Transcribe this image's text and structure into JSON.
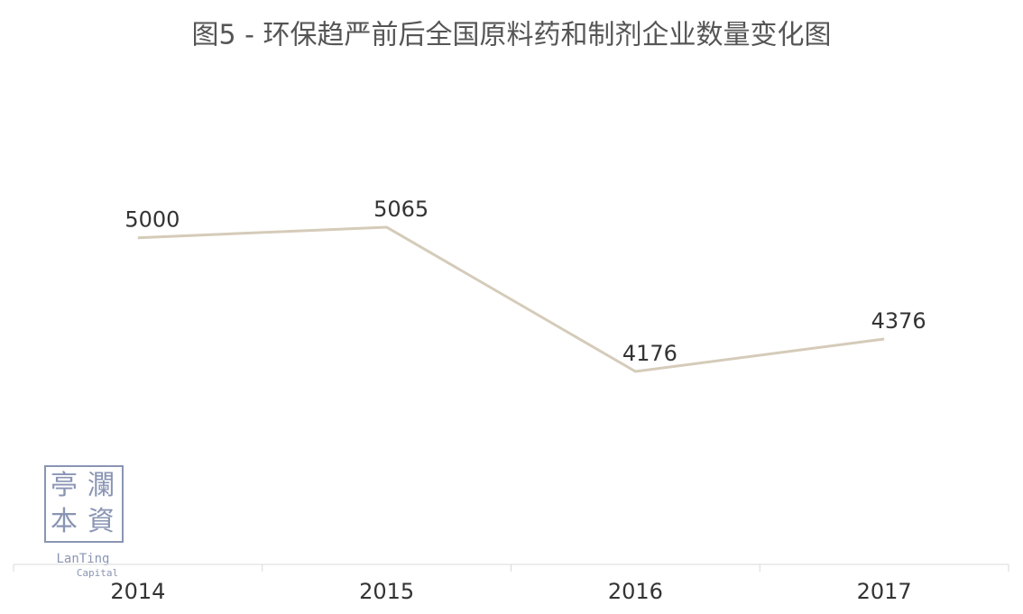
{
  "chart_data": {
    "type": "line",
    "title": "图5 - 环保趋严前后全国原料药和制剂企业数量变化图",
    "categories": [
      "2014",
      "2015",
      "2016",
      "2017"
    ],
    "series": [
      {
        "color": "#d5cbb9",
        "values": [
          5000,
          5065,
          4176,
          4376
        ]
      }
    ],
    "data_labels": true,
    "watermark": {
      "seal": [
        "亭",
        "瀾",
        "本",
        "資"
      ],
      "lines": [
        "LanTing",
        "Capital"
      ]
    }
  }
}
